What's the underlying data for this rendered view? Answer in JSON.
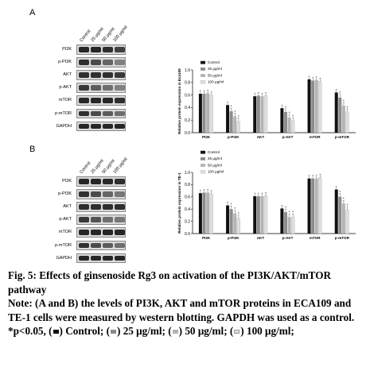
{
  "panels": [
    {
      "letter": "A",
      "lanes": [
        "Control",
        "25 μg/ml",
        "50 μg/ml",
        "100 μg/ml"
      ],
      "blot_rows": [
        "PI3K",
        "p-PI3K",
        "AKT",
        "p-AKT",
        "mTOR",
        "p-mTOR",
        "GAPDH"
      ],
      "band_intensity": [
        [
          0.9,
          0.9,
          0.85,
          0.75
        ],
        [
          0.85,
          0.7,
          0.55,
          0.4
        ],
        [
          0.85,
          0.85,
          0.85,
          0.8
        ],
        [
          0.8,
          0.6,
          0.5,
          0.4
        ],
        [
          0.9,
          0.9,
          0.9,
          0.85
        ],
        [
          0.85,
          0.7,
          0.6,
          0.5
        ],
        [
          0.9,
          0.9,
          0.9,
          0.9
        ]
      ],
      "chart_data": {
        "type": "bar",
        "ylabel": "Relative protein expression in Eca109",
        "ylim": [
          0,
          1.0
        ],
        "yticks": [
          "0.0",
          "0.2",
          "0.4",
          "0.6",
          "0.8",
          "1.0"
        ],
        "categories": [
          "PI3K",
          "p-PI3K",
          "AKT",
          "p-AKT",
          "mTOR",
          "p-mTOR"
        ],
        "legend": [
          "Control",
          "25 μg/ml",
          "50 μg/ml",
          "100 μg/ml"
        ],
        "colors": [
          "#111111",
          "#8c8c8c",
          "#b4b4b4",
          "#dedede"
        ],
        "series": [
          {
            "name": "Control",
            "values": [
              0.62,
              0.44,
              0.58,
              0.39,
              0.85,
              0.64
            ]
          },
          {
            "name": "25 μg/ml",
            "values": [
              0.62,
              0.34,
              0.59,
              0.33,
              0.83,
              0.56
            ]
          },
          {
            "name": "50 μg/ml",
            "values": [
              0.63,
              0.26,
              0.58,
              0.24,
              0.84,
              0.43
            ]
          },
          {
            "name": "100 μg/ml",
            "values": [
              0.6,
              0.18,
              0.59,
              0.19,
              0.82,
              0.33
            ]
          }
        ],
        "star_marks": [
          "p-PI3K",
          "p-AKT",
          "p-mTOR"
        ]
      }
    },
    {
      "letter": "B",
      "lanes": [
        "Control",
        "25 μg/ml",
        "50 μg/ml",
        "100 μg/ml"
      ],
      "blot_rows": [
        "PI3K",
        "p-PI3K",
        "AKT",
        "p-AKT",
        "mTOR",
        "p-mTOR",
        "GAPDH"
      ],
      "band_intensity": [
        [
          0.9,
          0.9,
          0.88,
          0.85
        ],
        [
          0.85,
          0.7,
          0.55,
          0.45
        ],
        [
          0.85,
          0.85,
          0.85,
          0.85
        ],
        [
          0.8,
          0.65,
          0.5,
          0.45
        ],
        [
          0.9,
          0.9,
          0.9,
          0.9
        ],
        [
          0.85,
          0.7,
          0.6,
          0.5
        ],
        [
          0.9,
          0.9,
          0.9,
          0.9
        ]
      ],
      "chart_data": {
        "type": "bar",
        "ylabel": "Relative protein expression in TE-1",
        "ylim": [
          0,
          1.0
        ],
        "yticks": [
          "0.0",
          "0.2",
          "0.4",
          "0.6",
          "0.8",
          "1.0"
        ],
        "categories": [
          "PI3K",
          "p-PI3K",
          "AKT",
          "p-AKT",
          "mTOR",
          "p-mTOR"
        ],
        "legend": [
          "Control",
          "25 μg/ml",
          "50 μg/ml",
          "100 μg/ml"
        ],
        "colors": [
          "#111111",
          "#8c8c8c",
          "#b4b4b4",
          "#dedede"
        ],
        "series": [
          {
            "name": "Control",
            "values": [
              0.66,
              0.46,
              0.61,
              0.41,
              0.9,
              0.72
            ]
          },
          {
            "name": "25 μg/ml",
            "values": [
              0.67,
              0.4,
              0.61,
              0.35,
              0.9,
              0.6
            ]
          },
          {
            "name": "50 μg/ml",
            "values": [
              0.67,
              0.33,
              0.61,
              0.27,
              0.9,
              0.49
            ]
          },
          {
            "name": "100 μg/ml",
            "values": [
              0.65,
              0.25,
              0.62,
              0.27,
              0.92,
              0.39
            ]
          }
        ],
        "star_marks": [
          "p-PI3K",
          "p-AKT",
          "p-mTOR"
        ]
      }
    }
  ],
  "caption": {
    "title": "Fig. 5: Effects of ginsenoside Rg3 on activation of the PI3K/AKT/mTOR pathway",
    "note_start": "Note: (A and B) the levels of PI3K, AKT and mTOR proteins in ECA109 and TE-1 cells were measured by western blotting. GAPDH was used as a control. *p<0.05, (",
    "l1": ") Control; (",
    "l2": ") 25 μg/ml; (",
    "l3": ") 50 μg/ml; (",
    "l4": ") 100 μg/ml;"
  }
}
